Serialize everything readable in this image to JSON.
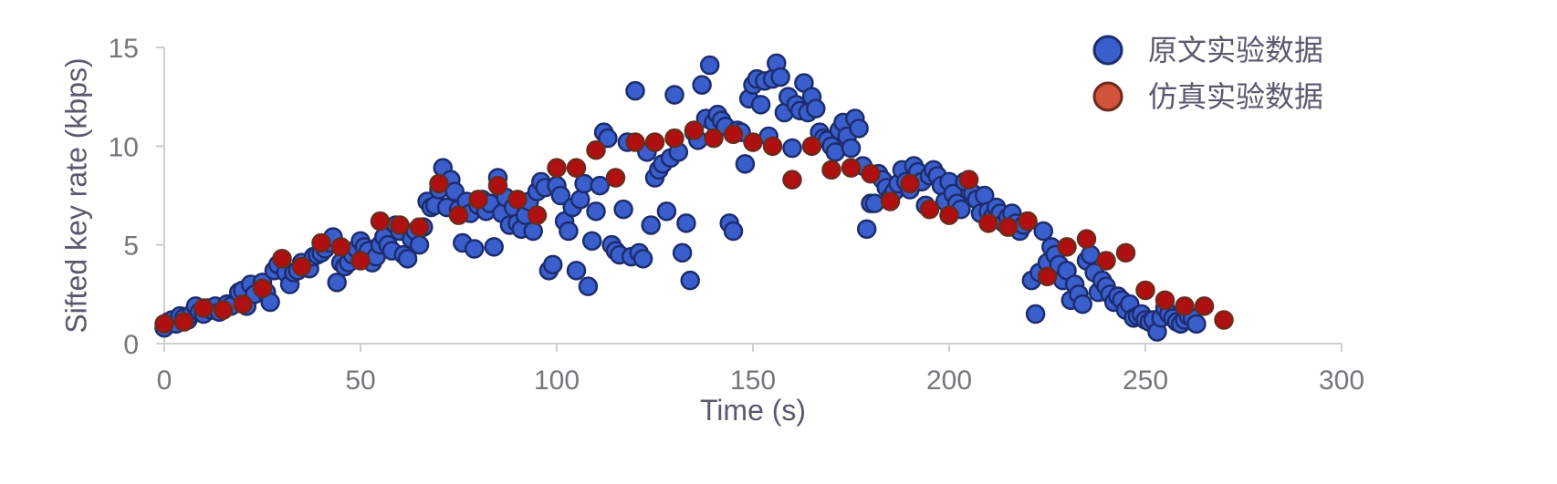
{
  "chart_data": {
    "type": "scatter",
    "title": "",
    "xlabel": "Time (s)",
    "ylabel": "Sifted key rate (kbps)",
    "xlim": [
      0,
      300
    ],
    "ylim": [
      0,
      15
    ],
    "xticks": [
      "0",
      "50",
      "100",
      "150",
      "200",
      "250",
      "300"
    ],
    "yticks": [
      "0",
      "5",
      "10",
      "15"
    ],
    "grid": false,
    "legend_position": "top-right",
    "series": [
      {
        "name": "原文实验数据",
        "color": "#3a5fcd",
        "edge_color": "#1c2c6e",
        "points": [
          [
            0,
            0.8
          ],
          [
            1,
            1.1
          ],
          [
            2,
            1.2
          ],
          [
            3,
            1.0
          ],
          [
            4,
            1.4
          ],
          [
            5,
            1.3
          ],
          [
            6,
            1.2
          ],
          [
            7,
            1.5
          ],
          [
            8,
            1.9
          ],
          [
            9,
            1.6
          ],
          [
            10,
            1.5
          ],
          [
            11,
            1.8
          ],
          [
            12,
            1.7
          ],
          [
            13,
            1.9
          ],
          [
            14,
            1.6
          ],
          [
            16,
            2.0
          ],
          [
            17,
            1.9
          ],
          [
            19,
            2.6
          ],
          [
            20,
            2.7
          ],
          [
            21,
            1.9
          ],
          [
            22,
            3.0
          ],
          [
            23,
            2.5
          ],
          [
            25,
            3.1
          ],
          [
            26,
            2.6
          ],
          [
            27,
            2.1
          ],
          [
            28,
            3.7
          ],
          [
            29,
            4.0
          ],
          [
            30,
            4.3
          ],
          [
            31,
            3.6
          ],
          [
            32,
            3.0
          ],
          [
            33,
            3.6
          ],
          [
            34,
            3.7
          ],
          [
            35,
            4.1
          ],
          [
            37,
            3.8
          ],
          [
            38,
            4.4
          ],
          [
            39,
            4.5
          ],
          [
            40,
            4.6
          ],
          [
            41,
            4.8
          ],
          [
            42,
            5.1
          ],
          [
            43,
            5.4
          ],
          [
            44,
            3.1
          ],
          [
            45,
            4.1
          ],
          [
            46,
            3.9
          ],
          [
            47,
            4.1
          ],
          [
            48,
            4.5
          ],
          [
            49,
            4.8
          ],
          [
            50,
            5.2
          ],
          [
            51,
            4.9
          ],
          [
            52,
            4.7
          ],
          [
            53,
            4.1
          ],
          [
            54,
            4.4
          ],
          [
            55,
            5.0
          ],
          [
            56,
            5.4
          ],
          [
            57,
            5.0
          ],
          [
            58,
            4.7
          ],
          [
            59,
            6.0
          ],
          [
            60,
            5.7
          ],
          [
            61,
            4.5
          ],
          [
            62,
            4.3
          ],
          [
            63,
            5.3
          ],
          [
            64,
            5.7
          ],
          [
            65,
            5.0
          ],
          [
            66,
            5.9
          ],
          [
            67,
            7.2
          ],
          [
            68,
            6.9
          ],
          [
            69,
            7.0
          ],
          [
            70,
            7.8
          ],
          [
            71,
            8.9
          ],
          [
            72,
            6.9
          ],
          [
            73,
            8.3
          ],
          [
            74,
            7.7
          ],
          [
            75,
            6.8
          ],
          [
            76,
            5.1
          ],
          [
            77,
            7.2
          ],
          [
            78,
            6.6
          ],
          [
            79,
            4.8
          ],
          [
            80,
            7.0
          ],
          [
            81,
            7.3
          ],
          [
            82,
            6.7
          ],
          [
            83,
            7.1
          ],
          [
            84,
            4.9
          ],
          [
            85,
            8.4
          ],
          [
            86,
            6.6
          ],
          [
            87,
            7.4
          ],
          [
            88,
            6.0
          ],
          [
            89,
            6.9
          ],
          [
            90,
            6.1
          ],
          [
            91,
            5.8
          ],
          [
            92,
            6.5
          ],
          [
            93,
            7.2
          ],
          [
            94,
            5.7
          ],
          [
            95,
            7.7
          ],
          [
            96,
            8.2
          ],
          [
            97,
            7.9
          ],
          [
            98,
            3.7
          ],
          [
            99,
            4.0
          ],
          [
            100,
            8.0
          ],
          [
            101,
            7.5
          ],
          [
            102,
            6.2
          ],
          [
            103,
            5.7
          ],
          [
            104,
            6.9
          ],
          [
            105,
            3.7
          ],
          [
            106,
            7.3
          ],
          [
            107,
            8.1
          ],
          [
            108,
            2.9
          ],
          [
            109,
            5.2
          ],
          [
            110,
            6.7
          ],
          [
            111,
            8.0
          ],
          [
            112,
            10.7
          ],
          [
            113,
            10.4
          ],
          [
            114,
            5.0
          ],
          [
            115,
            4.7
          ],
          [
            116,
            4.5
          ],
          [
            117,
            6.8
          ],
          [
            118,
            10.2
          ],
          [
            119,
            4.4
          ],
          [
            120,
            12.8
          ],
          [
            121,
            4.6
          ],
          [
            122,
            4.3
          ],
          [
            123,
            9.7
          ],
          [
            124,
            6.0
          ],
          [
            125,
            8.4
          ],
          [
            126,
            8.8
          ],
          [
            127,
            9.1
          ],
          [
            128,
            6.7
          ],
          [
            129,
            9.4
          ],
          [
            130,
            12.6
          ],
          [
            131,
            9.7
          ],
          [
            132,
            4.6
          ],
          [
            133,
            6.1
          ],
          [
            134,
            3.2
          ],
          [
            135,
            10.7
          ],
          [
            136,
            10.3
          ],
          [
            137,
            13.1
          ],
          [
            138,
            11.4
          ],
          [
            139,
            14.1
          ],
          [
            140,
            11.2
          ],
          [
            141,
            11.6
          ],
          [
            142,
            11.3
          ],
          [
            143,
            11.0
          ],
          [
            144,
            6.1
          ],
          [
            145,
            5.7
          ],
          [
            146,
            10.8
          ],
          [
            147,
            10.7
          ],
          [
            148,
            9.1
          ],
          [
            149,
            12.4
          ],
          [
            150,
            13.1
          ],
          [
            151,
            13.4
          ],
          [
            152,
            12.1
          ],
          [
            153,
            13.3
          ],
          [
            154,
            10.5
          ],
          [
            155,
            13.4
          ],
          [
            156,
            14.2
          ],
          [
            157,
            13.5
          ],
          [
            158,
            11.7
          ],
          [
            159,
            12.5
          ],
          [
            160,
            9.9
          ],
          [
            161,
            12.1
          ],
          [
            162,
            11.8
          ],
          [
            163,
            13.2
          ],
          [
            164,
            11.7
          ],
          [
            165,
            12.5
          ],
          [
            166,
            11.9
          ],
          [
            167,
            10.7
          ],
          [
            168,
            10.4
          ],
          [
            169,
            10.3
          ],
          [
            170,
            10.0
          ],
          [
            171,
            9.7
          ],
          [
            172,
            10.8
          ],
          [
            173,
            11.2
          ],
          [
            174,
            10.5
          ],
          [
            175,
            9.9
          ],
          [
            176,
            11.4
          ],
          [
            177,
            10.9
          ],
          [
            178,
            9.0
          ],
          [
            179,
            5.8
          ],
          [
            180,
            7.1
          ],
          [
            181,
            7.1
          ],
          [
            182,
            8.6
          ],
          [
            183,
            8.3
          ],
          [
            184,
            7.9
          ],
          [
            185,
            7.4
          ],
          [
            186,
            7.7
          ],
          [
            187,
            8.1
          ],
          [
            188,
            8.8
          ],
          [
            189,
            8.2
          ],
          [
            190,
            7.8
          ],
          [
            191,
            9.0
          ],
          [
            192,
            8.7
          ],
          [
            193,
            8.2
          ],
          [
            194,
            7.0
          ],
          [
            195,
            8.5
          ],
          [
            196,
            8.8
          ],
          [
            197,
            8.5
          ],
          [
            198,
            8.0
          ],
          [
            199,
            7.2
          ],
          [
            200,
            8.2
          ],
          [
            201,
            7.6
          ],
          [
            202,
            7.1
          ],
          [
            203,
            6.8
          ],
          [
            204,
            8.2
          ],
          [
            205,
            8.3
          ],
          [
            206,
            7.6
          ],
          [
            207,
            7.3
          ],
          [
            208,
            6.6
          ],
          [
            209,
            7.5
          ],
          [
            210,
            6.7
          ],
          [
            211,
            6.4
          ],
          [
            212,
            6.9
          ],
          [
            213,
            6.6
          ],
          [
            214,
            6.1
          ],
          [
            215,
            6.4
          ],
          [
            216,
            6.6
          ],
          [
            217,
            6.1
          ],
          [
            218,
            5.7
          ],
          [
            219,
            6.0
          ],
          [
            220,
            6.2
          ],
          [
            221,
            3.2
          ],
          [
            222,
            1.5
          ],
          [
            223,
            3.6
          ],
          [
            224,
            5.7
          ],
          [
            225,
            4.1
          ],
          [
            226,
            4.9
          ],
          [
            227,
            4.5
          ],
          [
            228,
            4.0
          ],
          [
            229,
            3.2
          ],
          [
            230,
            3.7
          ],
          [
            231,
            2.2
          ],
          [
            232,
            3.0
          ],
          [
            233,
            2.5
          ],
          [
            234,
            2.0
          ],
          [
            235,
            4.2
          ],
          [
            236,
            4.5
          ],
          [
            237,
            3.6
          ],
          [
            238,
            2.6
          ],
          [
            239,
            3.2
          ],
          [
            240,
            2.9
          ],
          [
            241,
            2.5
          ],
          [
            242,
            2.1
          ],
          [
            243,
            2.4
          ],
          [
            244,
            2.2
          ],
          [
            245,
            1.7
          ],
          [
            246,
            2.0
          ],
          [
            247,
            1.3
          ],
          [
            248,
            1.4
          ],
          [
            249,
            1.5
          ],
          [
            250,
            1.2
          ],
          [
            251,
            1.1
          ],
          [
            252,
            1.2
          ],
          [
            253,
            0.6
          ],
          [
            254,
            1.3
          ],
          [
            255,
            1.8
          ],
          [
            256,
            1.5
          ],
          [
            257,
            1.3
          ],
          [
            258,
            1.1
          ],
          [
            259,
            1.0
          ],
          [
            260,
            1.2
          ],
          [
            261,
            1.4
          ],
          [
            262,
            1.3
          ],
          [
            263,
            1.0
          ]
        ]
      },
      {
        "name": "仿真实验数据",
        "color": "#b01010",
        "edge_color": "#6e2a1c",
        "points": [
          [
            0,
            1.0
          ],
          [
            5,
            1.1
          ],
          [
            10,
            1.8
          ],
          [
            15,
            1.7
          ],
          [
            20,
            2.0
          ],
          [
            25,
            2.8
          ],
          [
            30,
            4.3
          ],
          [
            35,
            3.9
          ],
          [
            40,
            5.1
          ],
          [
            45,
            4.9
          ],
          [
            50,
            4.2
          ],
          [
            55,
            6.2
          ],
          [
            60,
            6.0
          ],
          [
            65,
            5.9
          ],
          [
            70,
            8.1
          ],
          [
            75,
            6.5
          ],
          [
            80,
            7.3
          ],
          [
            85,
            8.0
          ],
          [
            90,
            7.3
          ],
          [
            95,
            6.5
          ],
          [
            100,
            8.9
          ],
          [
            105,
            8.9
          ],
          [
            110,
            9.8
          ],
          [
            115,
            8.4
          ],
          [
            120,
            10.2
          ],
          [
            125,
            10.2
          ],
          [
            130,
            10.4
          ],
          [
            135,
            10.8
          ],
          [
            140,
            10.4
          ],
          [
            145,
            10.6
          ],
          [
            150,
            10.2
          ],
          [
            155,
            10.0
          ],
          [
            160,
            8.3
          ],
          [
            165,
            10.0
          ],
          [
            170,
            8.8
          ],
          [
            175,
            8.9
          ],
          [
            180,
            8.6
          ],
          [
            185,
            7.2
          ],
          [
            190,
            8.1
          ],
          [
            195,
            6.8
          ],
          [
            200,
            6.5
          ],
          [
            205,
            8.3
          ],
          [
            210,
            6.1
          ],
          [
            215,
            5.9
          ],
          [
            220,
            6.2
          ],
          [
            225,
            3.4
          ],
          [
            230,
            4.9
          ],
          [
            235,
            5.3
          ],
          [
            240,
            4.2
          ],
          [
            245,
            4.6
          ],
          [
            250,
            2.7
          ],
          [
            255,
            2.2
          ],
          [
            260,
            1.9
          ],
          [
            265,
            1.9
          ],
          [
            270,
            1.2
          ]
        ]
      }
    ]
  }
}
